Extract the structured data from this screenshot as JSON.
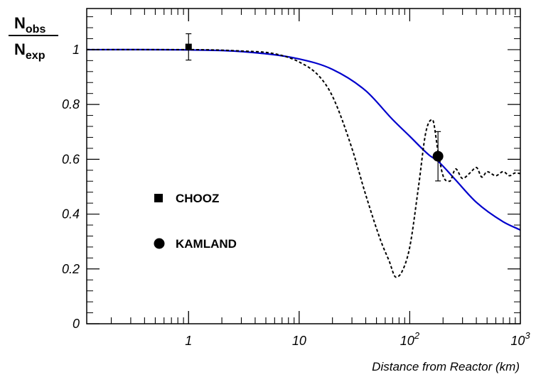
{
  "chart_data": {
    "type": "line",
    "xlabel": "Distance from Reactor (km)",
    "ylabel": {
      "main_top": "N",
      "sub_top": "obs",
      "main_bottom": "N",
      "sub_bottom": "exp"
    },
    "xscale": "log",
    "xlim": [
      0.12,
      1000
    ],
    "ylim": [
      0,
      1.15
    ],
    "x_ticks": [
      {
        "value": 1,
        "label": "1"
      },
      {
        "value": 10,
        "label": "10"
      },
      {
        "value": 100,
        "base": "10",
        "exp": "2"
      },
      {
        "value": 1000,
        "base": "10",
        "exp": "3"
      }
    ],
    "y_ticks": [
      {
        "value": 0,
        "label": "0"
      },
      {
        "value": 0.2,
        "label": "0.2"
      },
      {
        "value": 0.4,
        "label": "0.4"
      },
      {
        "value": 0.6,
        "label": "0.6"
      },
      {
        "value": 0.8,
        "label": "0.8"
      },
      {
        "value": 1.0,
        "label": "1"
      }
    ],
    "grid": false,
    "series": [
      {
        "style": "solid",
        "color": "#0000cc",
        "x": [
          0.12,
          1,
          3,
          10,
          20,
          40,
          70,
          100,
          150,
          180,
          250,
          400,
          700,
          1000
        ],
        "y": [
          1.0,
          0.999,
          0.993,
          0.966,
          0.928,
          0.85,
          0.745,
          0.684,
          0.615,
          0.593,
          0.532,
          0.443,
          0.372,
          0.342
        ]
      },
      {
        "style": "dashed",
        "color": "#000000",
        "x": [
          0.12,
          1,
          3,
          6,
          10,
          15,
          20,
          30,
          40,
          55,
          65,
          75,
          85,
          100,
          120,
          140,
          160,
          180,
          200,
          230,
          260,
          300,
          350,
          400,
          450,
          500,
          600,
          700,
          800,
          900,
          1000
        ],
        "y": [
          1.0,
          1.0,
          0.995,
          0.985,
          0.955,
          0.905,
          0.83,
          0.64,
          0.47,
          0.3,
          0.23,
          0.17,
          0.19,
          0.28,
          0.5,
          0.7,
          0.745,
          0.63,
          0.54,
          0.52,
          0.565,
          0.53,
          0.55,
          0.57,
          0.535,
          0.555,
          0.54,
          0.555,
          0.54,
          0.55,
          0.548
        ]
      }
    ],
    "data_points": [
      {
        "name": "CHOOZ",
        "marker": "square",
        "x": 1,
        "y": 1.01,
        "err": 0.048
      },
      {
        "name": "KAMLAND",
        "marker": "circle",
        "x": 180,
        "y": 0.611,
        "err": 0.09
      }
    ],
    "legend": {
      "placement": "center-left",
      "entries": [
        {
          "label": "CHOOZ",
          "marker": "square"
        },
        {
          "label": "KAMLAND",
          "marker": "circle"
        }
      ]
    }
  }
}
